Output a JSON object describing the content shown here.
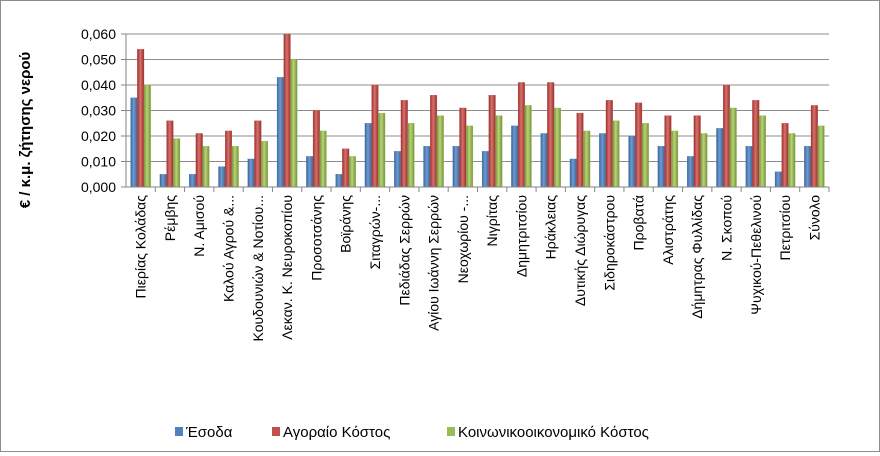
{
  "chart_data": {
    "type": "bar",
    "title": "",
    "xlabel": "",
    "ylabel": "€ / κ.μ. ζήτησης νερού",
    "ylim": [
      0,
      0.06
    ],
    "yticks": [
      "0,000",
      "0,010",
      "0,020",
      "0,030",
      "0,040",
      "0,050",
      "0,060"
    ],
    "grid": true,
    "legend_position": "bottom",
    "categories": [
      "Πιερίας Κολάδας",
      "Ρέμβης",
      "Ν. Αμισού",
      "Καλού Αγρού &...",
      "Κουδουνιών & Νοτίου...",
      "Λεκαν. Κ. Νευροκοπίου",
      "Προσοτσάνης",
      "Βοϊράνης",
      "Σιταγρών-...",
      "Πεδιάδας Σερρών",
      "Αγίου Ιωάννη Σερρών",
      "Νεοχωρίου -...",
      "Νιγρίτας",
      "Δημητριτσίου",
      "Ηράκλειας",
      "Δυτικής Διώρυγας",
      "Σιδηροκάστρου",
      "Προβατά",
      "Αλιστράτης",
      "Δήμητρας Φυλλίδας",
      "Ν. Σκοπού",
      "Ψυχικού-Πεθελινού",
      "Πετριτσίου",
      "Σύνολο"
    ],
    "series": [
      {
        "name": "Έσοδα",
        "color": "#4F81BD",
        "values": [
          0.035,
          0.005,
          0.005,
          0.008,
          0.011,
          0.043,
          0.012,
          0.005,
          0.025,
          0.014,
          0.016,
          0.016,
          0.014,
          0.024,
          0.021,
          0.011,
          0.021,
          0.02,
          0.016,
          0.012,
          0.023,
          0.016,
          0.006,
          0.016
        ]
      },
      {
        "name": "Αγοραίο Κόστος",
        "color": "#C0504D",
        "values": [
          0.054,
          0.026,
          0.021,
          0.022,
          0.026,
          0.06,
          0.03,
          0.015,
          0.04,
          0.034,
          0.036,
          0.031,
          0.036,
          0.041,
          0.041,
          0.029,
          0.034,
          0.033,
          0.028,
          0.028,
          0.04,
          0.034,
          0.025,
          0.032
        ]
      },
      {
        "name": "Κοινωνικοοικονομικό Κόστος",
        "color": "#9BBB59",
        "values": [
          0.04,
          0.019,
          0.016,
          0.016,
          0.018,
          0.05,
          0.022,
          0.012,
          0.029,
          0.025,
          0.028,
          0.024,
          0.028,
          0.032,
          0.031,
          0.022,
          0.026,
          0.025,
          0.022,
          0.021,
          0.031,
          0.028,
          0.021,
          0.024
        ]
      }
    ]
  }
}
